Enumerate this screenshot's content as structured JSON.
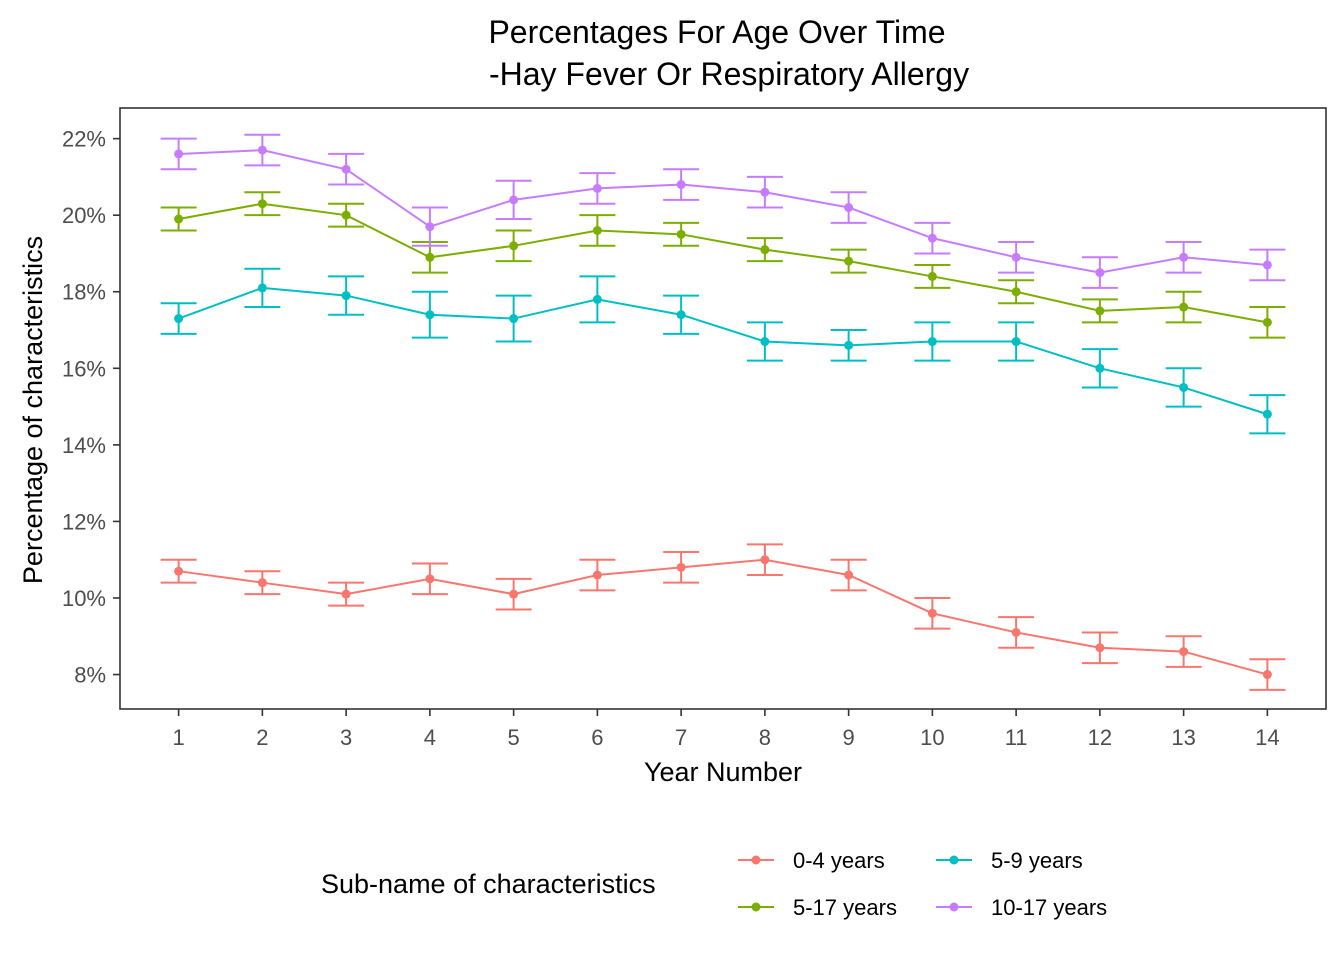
{
  "chart_data": {
    "type": "line",
    "title": "Percentages For Age Over Time",
    "subtitle": "-Hay Fever Or Respiratory Allergy",
    "xlabel": "Year Number",
    "ylabel": "Percentage of characteristics",
    "x": [
      1,
      2,
      3,
      4,
      5,
      6,
      7,
      8,
      9,
      10,
      11,
      12,
      13,
      14
    ],
    "x_ticks": [
      "1",
      "2",
      "3",
      "4",
      "5",
      "6",
      "7",
      "8",
      "9",
      "10",
      "11",
      "12",
      "13",
      "14"
    ],
    "y_ticks": [
      "8%",
      "10%",
      "12%",
      "14%",
      "16%",
      "18%",
      "20%",
      "22%"
    ],
    "y_tick_values": [
      8,
      10,
      12,
      14,
      16,
      18,
      20,
      22
    ],
    "xlim": [
      0.3,
      14.7
    ],
    "ylim": [
      7.1,
      22.8
    ],
    "grid": false,
    "error_bars": true,
    "legend_position": "bottom",
    "legend_title": "Sub-name of characteristics",
    "series": [
      {
        "name": "0-4 years",
        "color": "#F8766D",
        "values": [
          10.7,
          10.4,
          10.1,
          10.5,
          10.1,
          10.6,
          10.8,
          11.0,
          10.6,
          9.6,
          9.1,
          8.7,
          8.6,
          8.0
        ],
        "lower": [
          10.4,
          10.1,
          9.8,
          10.1,
          9.7,
          10.2,
          10.4,
          10.6,
          10.2,
          9.2,
          8.7,
          8.3,
          8.2,
          7.6
        ],
        "upper": [
          11.0,
          10.7,
          10.4,
          10.9,
          10.5,
          11.0,
          11.2,
          11.4,
          11.0,
          10.0,
          9.5,
          9.1,
          9.0,
          8.4
        ]
      },
      {
        "name": "5-9 years",
        "color": "#00BFC4",
        "values": [
          17.3,
          18.1,
          17.9,
          17.4,
          17.3,
          17.8,
          17.4,
          16.7,
          16.6,
          16.7,
          16.7,
          16.0,
          15.5,
          14.8
        ],
        "lower": [
          16.9,
          17.6,
          17.4,
          16.8,
          16.7,
          17.2,
          16.9,
          16.2,
          16.2,
          16.2,
          16.2,
          15.5,
          15.0,
          14.3
        ],
        "upper": [
          17.7,
          18.6,
          18.4,
          18.0,
          17.9,
          18.4,
          17.9,
          17.2,
          17.0,
          17.2,
          17.2,
          16.5,
          16.0,
          15.3
        ]
      },
      {
        "name": "5-17 years",
        "color": "#7CAE00",
        "values": [
          19.9,
          20.3,
          20.0,
          18.9,
          19.2,
          19.6,
          19.5,
          19.1,
          18.8,
          18.4,
          18.0,
          17.5,
          17.6,
          17.2
        ],
        "lower": [
          19.6,
          20.0,
          19.7,
          18.5,
          18.8,
          19.2,
          19.2,
          18.8,
          18.5,
          18.1,
          17.7,
          17.2,
          17.2,
          16.8
        ],
        "upper": [
          20.2,
          20.6,
          20.3,
          19.3,
          19.6,
          20.0,
          19.8,
          19.4,
          19.1,
          18.7,
          18.3,
          17.8,
          18.0,
          17.6
        ]
      },
      {
        "name": "10-17 years",
        "color": "#C77CFF",
        "values": [
          21.6,
          21.7,
          21.2,
          19.7,
          20.4,
          20.7,
          20.8,
          20.6,
          20.2,
          19.4,
          18.9,
          18.5,
          18.9,
          18.7
        ],
        "lower": [
          21.2,
          21.3,
          20.8,
          19.2,
          19.9,
          20.3,
          20.4,
          20.2,
          19.8,
          19.0,
          18.5,
          18.1,
          18.5,
          18.3
        ],
        "upper": [
          22.0,
          22.1,
          21.6,
          20.2,
          20.9,
          21.1,
          21.2,
          21.0,
          20.6,
          19.8,
          19.3,
          18.9,
          19.3,
          19.1
        ]
      }
    ]
  }
}
